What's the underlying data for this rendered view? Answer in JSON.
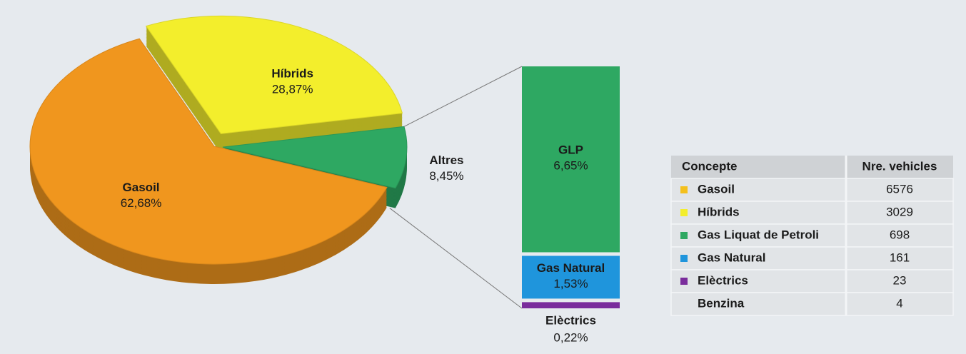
{
  "chart_data": [
    {
      "type": "pie",
      "categories": [
        "Gasoil",
        "Híbrids",
        "Altres"
      ],
      "values": [
        62.68,
        28.87,
        8.45
      ],
      "value_labels": [
        "62,68%",
        "28,87%",
        "8,45%"
      ],
      "colors": [
        "#f0961e",
        "#f3ee2c",
        "#2ea862"
      ]
    },
    {
      "type": "bar",
      "categories": [
        "GLP",
        "Gas Natural",
        "Elèctrics"
      ],
      "values": [
        6.65,
        1.53,
        0.22
      ],
      "value_labels": [
        "6,65%",
        "1,53%",
        "0,22%"
      ],
      "colors": [
        "#2ea862",
        "#1f95dc",
        "#7a2d9c"
      ]
    }
  ],
  "table": {
    "columns": [
      "Concepte",
      "Nre. vehicles"
    ],
    "rows": [
      {
        "name": "Gasoil",
        "value": 6576,
        "color": "#f4c01c"
      },
      {
        "name": "Híbrids",
        "value": 3029,
        "color": "#f3ee2c"
      },
      {
        "name": "Gas Liquat de Petroli",
        "value": 698,
        "color": "#2ea862"
      },
      {
        "name": "Gas Natural",
        "value": 161,
        "color": "#1f95dc"
      },
      {
        "name": "Elèctrics",
        "value": 23,
        "color": "#7a2d9c"
      },
      {
        "name": "Benzina",
        "value": 4
      }
    ]
  }
}
